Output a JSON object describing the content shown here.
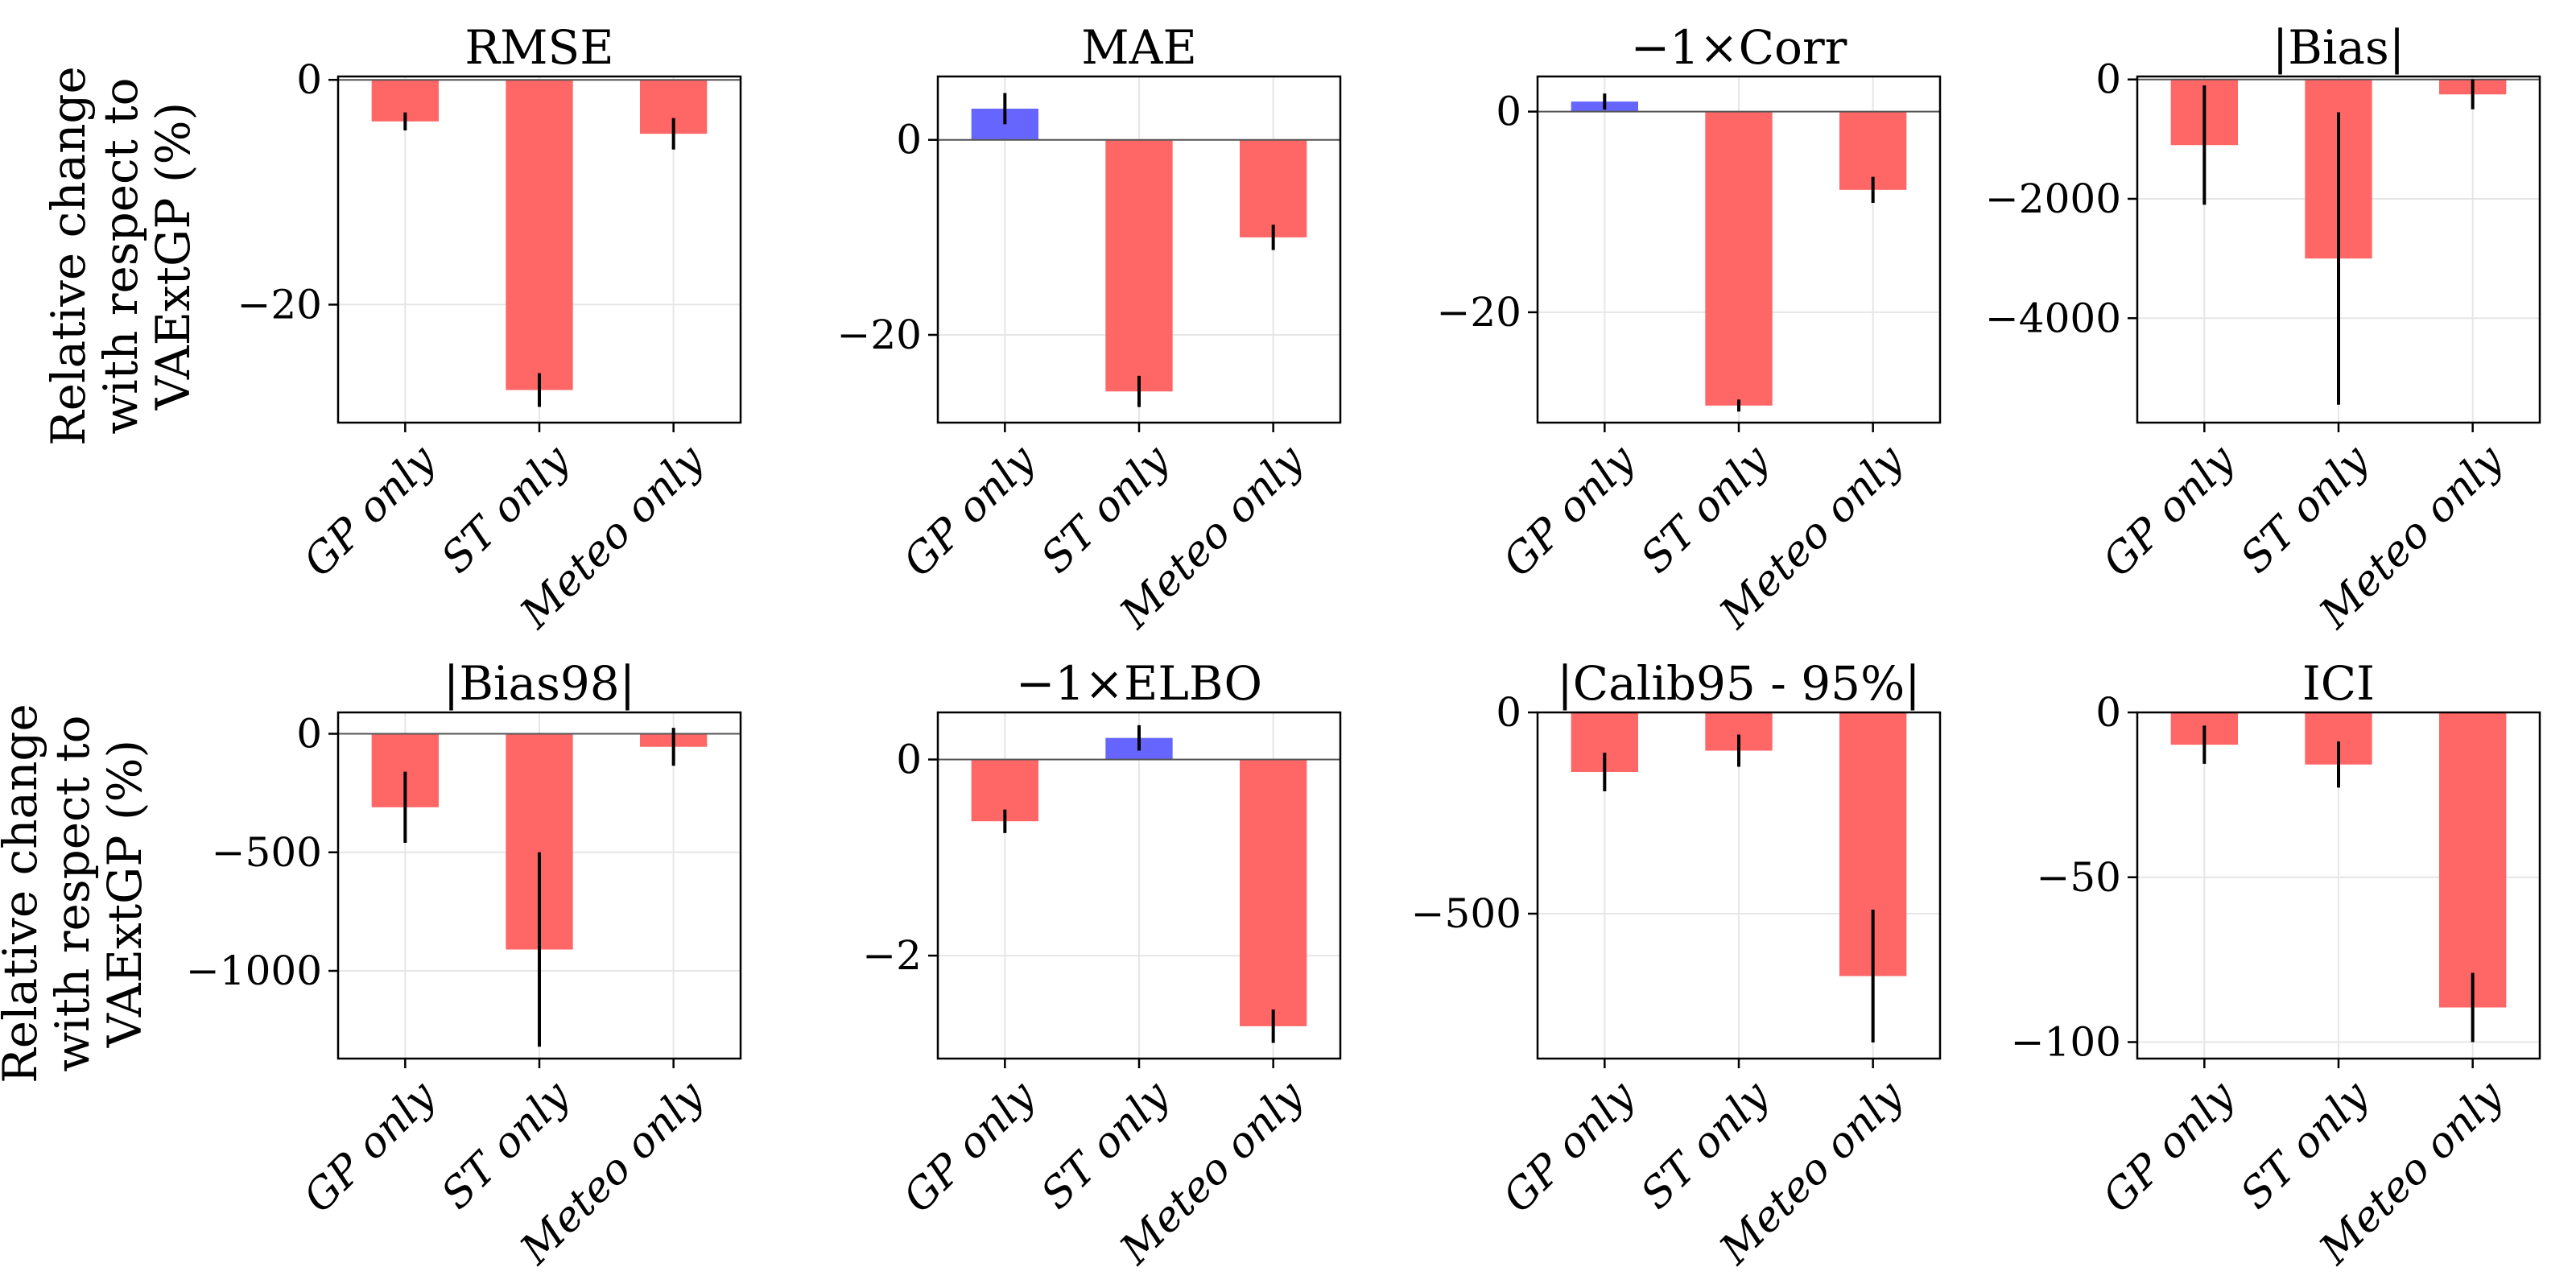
{
  "figure": {
    "ylabel_lines": [
      "Relative change",
      "with respect to",
      "VAExtGP (%)"
    ]
  },
  "colors": {
    "positive": "#6666ff",
    "negative": "#ff6666",
    "errorbar": "#000000",
    "grid": "#e6e6e6"
  },
  "chart_data": [
    {
      "type": "bar",
      "title": "RMSE",
      "categories": [
        "GP only",
        "ST only",
        "Meteo only"
      ],
      "values": [
        -3.7,
        -27.6,
        -4.8
      ],
      "errors": [
        0.8,
        1.5,
        1.4
      ],
      "ylim": [
        -30.5,
        0.3
      ],
      "yticks": [
        0,
        -20
      ],
      "grid": true,
      "xlabel": "",
      "ylabel": "Relative change with respect to VAExtGP (%)"
    },
    {
      "type": "bar",
      "title": "MAE",
      "categories": [
        "GP only",
        "ST only",
        "Meteo only"
      ],
      "values": [
        3.2,
        -25.8,
        -10.0
      ],
      "errors": [
        1.6,
        1.6,
        1.3
      ],
      "ylim": [
        -29.0,
        6.5
      ],
      "yticks": [
        0,
        -20
      ],
      "grid": true,
      "xlabel": "",
      "ylabel": ""
    },
    {
      "type": "bar",
      "title": "−1×Corr",
      "categories": [
        "GP only",
        "ST only",
        "Meteo only"
      ],
      "values": [
        1.0,
        -29.3,
        -7.8
      ],
      "errors": [
        0.8,
        0.6,
        1.3
      ],
      "ylim": [
        -31.0,
        3.5
      ],
      "yticks": [
        0,
        -20
      ],
      "grid": true,
      "xlabel": "",
      "ylabel": ""
    },
    {
      "type": "bar",
      "title": "|Bias|",
      "categories": [
        "GP only",
        "ST only",
        "Meteo only"
      ],
      "values": [
        -1100,
        -3000,
        -250
      ],
      "errors": [
        1000,
        2450,
        250
      ],
      "ylim": [
        -5750,
        50
      ],
      "yticks": [
        0,
        -2000,
        -4000
      ],
      "grid": true,
      "xlabel": "",
      "ylabel": ""
    },
    {
      "type": "bar",
      "title": "|Bias98|",
      "categories": [
        "GP only",
        "ST only",
        "Meteo only"
      ],
      "values": [
        -310,
        -910,
        -55
      ],
      "errors": [
        150,
        410,
        80
      ],
      "ylim": [
        -1370,
        90
      ],
      "yticks": [
        0,
        -500,
        -1000
      ],
      "grid": true,
      "xlabel": "",
      "ylabel": "Relative change with respect to VAExtGP (%)"
    },
    {
      "type": "bar",
      "title": "−1×ELBO",
      "categories": [
        "GP only",
        "ST only",
        "Meteo only"
      ],
      "values": [
        -0.63,
        0.22,
        -2.72
      ],
      "errors": [
        0.12,
        0.13,
        0.17
      ],
      "ylim": [
        -3.05,
        0.48
      ],
      "yticks": [
        0,
        -2
      ],
      "grid": true,
      "xlabel": "",
      "ylabel": ""
    },
    {
      "type": "bar",
      "title": "|Calib95 - 95%|",
      "categories": [
        "GP only",
        "ST only",
        "Meteo only"
      ],
      "values": [
        -148,
        -95,
        -655
      ],
      "errors": [
        48,
        40,
        165
      ],
      "ylim": [
        -860,
        0
      ],
      "yticks": [
        0,
        -500
      ],
      "grid": true,
      "xlabel": "",
      "ylabel": ""
    },
    {
      "type": "bar",
      "title": "ICI",
      "categories": [
        "GP only",
        "ST only",
        "Meteo only"
      ],
      "values": [
        -9.8,
        -15.8,
        -89.5
      ],
      "errors": [
        5.8,
        7.0,
        10.5
      ],
      "ylim": [
        -105,
        0
      ],
      "yticks": [
        0,
        -50,
        -100
      ],
      "grid": true,
      "xlabel": "",
      "ylabel": ""
    }
  ]
}
